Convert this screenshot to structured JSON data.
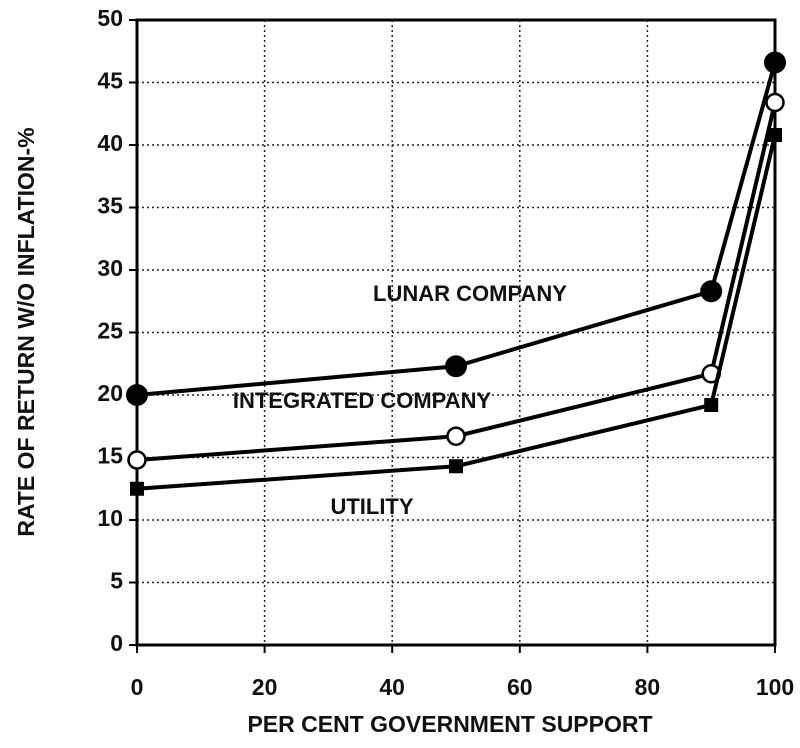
{
  "chart_data": {
    "type": "line",
    "xlabel": "PER CENT GOVERNMENT SUPPORT",
    "ylabel": "RATE OF RETURN W/O INFLATION-%",
    "x": [
      0,
      50,
      90,
      100
    ],
    "series": [
      {
        "name": "LUNAR COMPANY",
        "color": "#000000",
        "marker": "filled-circle",
        "values": [
          20,
          22.3,
          28.3,
          46.6
        ]
      },
      {
        "name": "INTEGRATED COMPANY",
        "color": "#000000",
        "marker": "open-circle",
        "values": [
          14.8,
          16.7,
          21.7,
          43.4
        ]
      },
      {
        "name": "UTILITY",
        "color": "#000000",
        "marker": "square",
        "values": [
          12.5,
          14.3,
          19.2,
          40.8
        ]
      }
    ],
    "xlim": [
      0,
      100
    ],
    "xticks": [
      0,
      20,
      40,
      60,
      80,
      100
    ],
    "ylim": [
      0,
      50
    ],
    "yticks": [
      0,
      5,
      10,
      15,
      20,
      25,
      30,
      35,
      40,
      45,
      50
    ],
    "grid": true
  }
}
